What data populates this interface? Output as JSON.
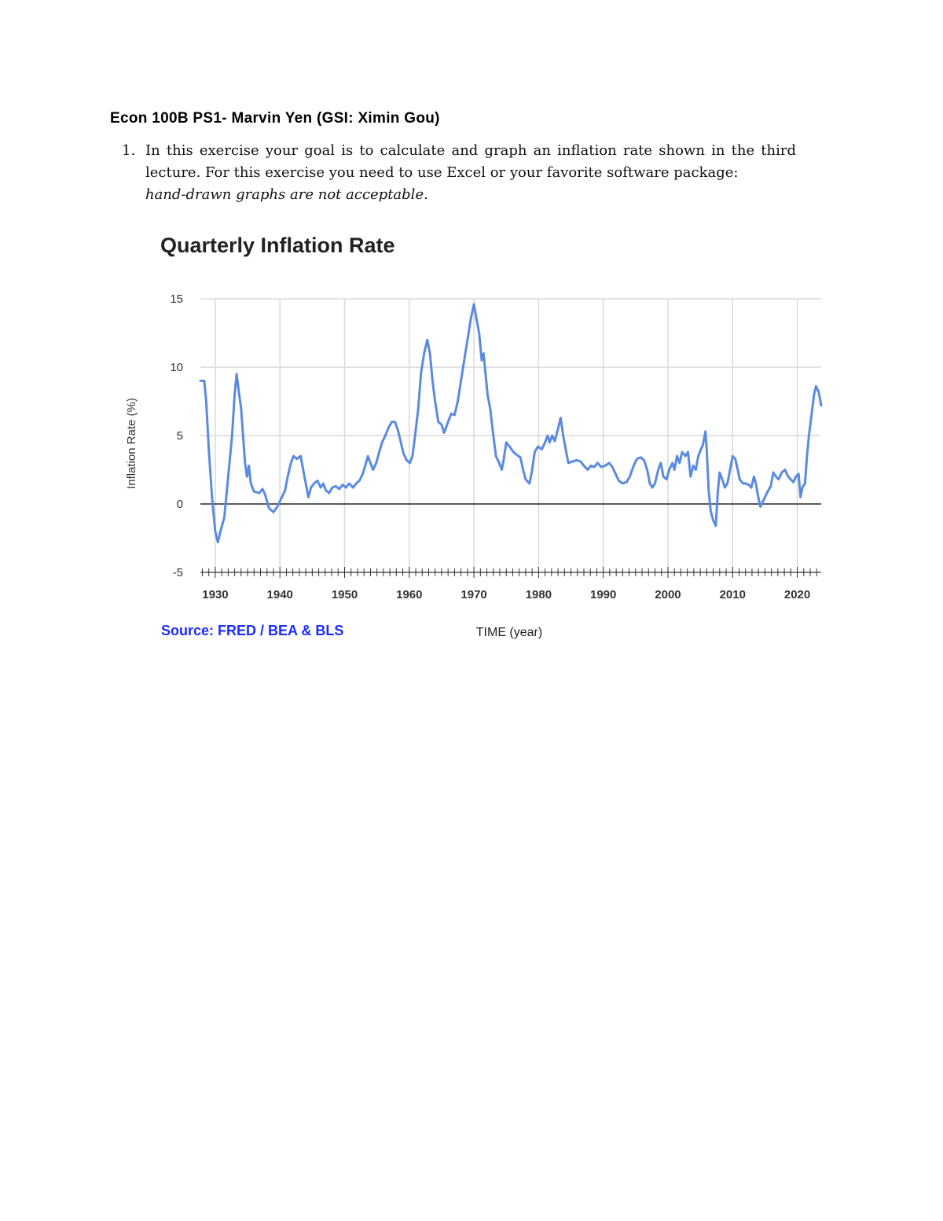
{
  "header": {
    "title": "Econ 100B PS1- Marvin Yen (GSI: Ximin Gou)"
  },
  "question": {
    "number": "1.",
    "text": "In this exercise your goal is to calculate and graph an inflation rate shown in the third lecture. For this exercise you need to use Excel or your favorite software package:",
    "emphasis": "hand-drawn graphs are not acceptable."
  },
  "source_note": "Source: FRED / BEA & BLS",
  "colors": {
    "line": "#5b8be0",
    "source": "#1a2cff",
    "grid": "#d9d9d9",
    "zero_line": "#222222"
  },
  "chart_data": {
    "type": "line",
    "title": "Quarterly Inflation Rate",
    "xlabel": "TIME (year)",
    "ylabel": "Inflation Rate (%)",
    "xlim": [
      1927.7,
      2023.7
    ],
    "ylim": [
      -5,
      15
    ],
    "xticks": [
      1930,
      1940,
      1950,
      1960,
      1970,
      1980,
      1990,
      2000,
      2010,
      2020
    ],
    "yticks": [
      -5,
      0,
      5,
      10,
      15
    ],
    "grid": true,
    "series": [
      {
        "values": [
          [
            1927.7,
            9.0
          ],
          [
            1928.3,
            9.0
          ],
          [
            1928.6,
            7.5
          ],
          [
            1929.0,
            4.0
          ],
          [
            1929.5,
            0.5
          ],
          [
            1930.0,
            -2.0
          ],
          [
            1930.4,
            -2.8
          ],
          [
            1930.8,
            -2.0
          ],
          [
            1931.4,
            -1.0
          ],
          [
            1932.0,
            2.0
          ],
          [
            1932.6,
            5.0
          ],
          [
            1933.0,
            8.0
          ],
          [
            1933.3,
            9.5
          ],
          [
            1933.7,
            8.0
          ],
          [
            1934.0,
            7.0
          ],
          [
            1934.3,
            5.0
          ],
          [
            1934.6,
            3.0
          ],
          [
            1934.9,
            2.0
          ],
          [
            1935.2,
            2.8
          ],
          [
            1935.5,
            1.5
          ],
          [
            1936.0,
            0.9
          ],
          [
            1936.8,
            0.8
          ],
          [
            1937.3,
            1.1
          ],
          [
            1937.7,
            0.7
          ],
          [
            1938.3,
            -0.3
          ],
          [
            1939.0,
            -0.6
          ],
          [
            1939.6,
            -0.2
          ],
          [
            1940.2,
            0.4
          ],
          [
            1940.8,
            1.0
          ],
          [
            1941.2,
            2.0
          ],
          [
            1941.7,
            3.0
          ],
          [
            1942.1,
            3.5
          ],
          [
            1942.6,
            3.3
          ],
          [
            1943.2,
            3.5
          ],
          [
            1943.6,
            2.5
          ],
          [
            1944.0,
            1.5
          ],
          [
            1944.4,
            0.5
          ],
          [
            1944.8,
            1.2
          ],
          [
            1945.3,
            1.5
          ],
          [
            1945.8,
            1.7
          ],
          [
            1946.3,
            1.2
          ],
          [
            1946.7,
            1.5
          ],
          [
            1947.1,
            1.0
          ],
          [
            1947.6,
            0.8
          ],
          [
            1948.1,
            1.2
          ],
          [
            1948.6,
            1.3
          ],
          [
            1949.2,
            1.1
          ],
          [
            1949.7,
            1.4
          ],
          [
            1950.2,
            1.2
          ],
          [
            1950.7,
            1.5
          ],
          [
            1951.3,
            1.2
          ],
          [
            1951.8,
            1.5
          ],
          [
            1952.3,
            1.7
          ],
          [
            1952.8,
            2.2
          ],
          [
            1953.2,
            2.8
          ],
          [
            1953.6,
            3.5
          ],
          [
            1954.0,
            3.0
          ],
          [
            1954.4,
            2.5
          ],
          [
            1954.9,
            3.0
          ],
          [
            1955.3,
            3.7
          ],
          [
            1955.8,
            4.5
          ],
          [
            1956.3,
            5.0
          ],
          [
            1956.8,
            5.6
          ],
          [
            1957.3,
            6.0
          ],
          [
            1957.8,
            6.0
          ],
          [
            1958.3,
            5.3
          ],
          [
            1958.7,
            4.5
          ],
          [
            1959.1,
            3.7
          ],
          [
            1959.6,
            3.2
          ],
          [
            1960.1,
            3.0
          ],
          [
            1960.5,
            3.5
          ],
          [
            1960.9,
            5.0
          ],
          [
            1961.4,
            7.0
          ],
          [
            1961.8,
            9.5
          ],
          [
            1962.3,
            11.0
          ],
          [
            1962.8,
            12.0
          ],
          [
            1963.2,
            11.0
          ],
          [
            1963.6,
            9.0
          ],
          [
            1964.0,
            7.5
          ],
          [
            1964.5,
            6.0
          ],
          [
            1965.0,
            5.8
          ],
          [
            1965.4,
            5.2
          ],
          [
            1966.0,
            6.0
          ],
          [
            1966.5,
            6.6
          ],
          [
            1967.0,
            6.5
          ],
          [
            1967.5,
            7.5
          ],
          [
            1968.0,
            9.0
          ],
          [
            1968.5,
            10.5
          ],
          [
            1969.0,
            12.0
          ],
          [
            1969.5,
            13.5
          ],
          [
            1970.0,
            14.6
          ],
          [
            1970.4,
            13.5
          ],
          [
            1970.8,
            12.5
          ],
          [
            1971.2,
            10.5
          ],
          [
            1971.5,
            11.0
          ],
          [
            1971.8,
            9.5
          ],
          [
            1972.1,
            8.0
          ],
          [
            1972.5,
            7.0
          ],
          [
            1973.0,
            5.0
          ],
          [
            1973.4,
            3.5
          ],
          [
            1973.9,
            3.0
          ],
          [
            1974.3,
            2.5
          ],
          [
            1974.6,
            3.2
          ],
          [
            1975.0,
            4.5
          ],
          [
            1975.5,
            4.2
          ],
          [
            1976.1,
            3.8
          ],
          [
            1976.6,
            3.6
          ],
          [
            1977.2,
            3.4
          ],
          [
            1977.6,
            2.5
          ],
          [
            1978.0,
            1.8
          ],
          [
            1978.6,
            1.5
          ],
          [
            1979.0,
            2.5
          ],
          [
            1979.4,
            3.8
          ],
          [
            1979.9,
            4.2
          ],
          [
            1980.5,
            4.0
          ],
          [
            1981.0,
            4.5
          ],
          [
            1981.4,
            5.0
          ],
          [
            1981.7,
            4.5
          ],
          [
            1982.1,
            5.0
          ],
          [
            1982.5,
            4.6
          ],
          [
            1983.0,
            5.5
          ],
          [
            1983.4,
            6.3
          ],
          [
            1983.8,
            5.0
          ],
          [
            1984.2,
            4.0
          ],
          [
            1984.6,
            3.0
          ],
          [
            1985.2,
            3.1
          ],
          [
            1985.9,
            3.2
          ],
          [
            1986.5,
            3.1
          ],
          [
            1987.0,
            2.8
          ],
          [
            1987.6,
            2.5
          ],
          [
            1988.1,
            2.8
          ],
          [
            1988.6,
            2.7
          ],
          [
            1989.1,
            3.0
          ],
          [
            1989.7,
            2.7
          ],
          [
            1990.3,
            2.8
          ],
          [
            1990.9,
            3.0
          ],
          [
            1991.4,
            2.7
          ],
          [
            1991.9,
            2.2
          ],
          [
            1992.4,
            1.7
          ],
          [
            1993.0,
            1.5
          ],
          [
            1993.6,
            1.6
          ],
          [
            1994.1,
            2.0
          ],
          [
            1994.7,
            2.8
          ],
          [
            1995.2,
            3.3
          ],
          [
            1995.8,
            3.4
          ],
          [
            1996.3,
            3.2
          ],
          [
            1996.8,
            2.5
          ],
          [
            1997.2,
            1.5
          ],
          [
            1997.6,
            1.2
          ],
          [
            1998.0,
            1.5
          ],
          [
            1998.5,
            2.5
          ],
          [
            1998.9,
            3.0
          ],
          [
            1999.3,
            2.0
          ],
          [
            1999.8,
            1.8
          ],
          [
            2000.2,
            2.5
          ],
          [
            2000.7,
            3.0
          ],
          [
            2001.0,
            2.5
          ],
          [
            2001.4,
            3.5
          ],
          [
            2001.8,
            3.0
          ],
          [
            2002.2,
            3.8
          ],
          [
            2002.7,
            3.5
          ],
          [
            2003.1,
            3.8
          ],
          [
            2003.5,
            2.0
          ],
          [
            2003.9,
            2.8
          ],
          [
            2004.3,
            2.5
          ],
          [
            2004.7,
            3.5
          ],
          [
            2005.1,
            4.0
          ],
          [
            2005.4,
            4.3
          ],
          [
            2005.8,
            5.3
          ],
          [
            2006.0,
            4.0
          ],
          [
            2006.3,
            1.0
          ],
          [
            2006.6,
            -0.5
          ],
          [
            2007.0,
            -1.2
          ],
          [
            2007.4,
            -1.6
          ],
          [
            2007.7,
            0.8
          ],
          [
            2008.0,
            2.3
          ],
          [
            2008.4,
            1.8
          ],
          [
            2008.8,
            1.2
          ],
          [
            2009.2,
            1.5
          ],
          [
            2009.6,
            2.5
          ],
          [
            2010.0,
            3.5
          ],
          [
            2010.4,
            3.3
          ],
          [
            2010.8,
            2.5
          ],
          [
            2011.1,
            1.8
          ],
          [
            2011.6,
            1.5
          ],
          [
            2012.0,
            1.5
          ],
          [
            2012.5,
            1.4
          ],
          [
            2012.9,
            1.2
          ],
          [
            2013.3,
            2.0
          ],
          [
            2013.6,
            1.5
          ],
          [
            2014.0,
            0.4
          ],
          [
            2014.3,
            -0.2
          ],
          [
            2014.8,
            0.3
          ],
          [
            2015.3,
            0.8
          ],
          [
            2015.9,
            1.3
          ],
          [
            2016.3,
            2.3
          ],
          [
            2016.7,
            2.0
          ],
          [
            2017.1,
            1.8
          ],
          [
            2017.6,
            2.3
          ],
          [
            2018.1,
            2.5
          ],
          [
            2018.6,
            2.0
          ],
          [
            2019.0,
            1.8
          ],
          [
            2019.4,
            1.6
          ],
          [
            2019.8,
            2.0
          ],
          [
            2020.2,
            2.2
          ],
          [
            2020.5,
            0.5
          ],
          [
            2020.8,
            1.2
          ],
          [
            2021.2,
            1.5
          ],
          [
            2021.5,
            3.5
          ],
          [
            2021.8,
            5.0
          ],
          [
            2022.2,
            6.5
          ],
          [
            2022.6,
            8.0
          ],
          [
            2022.9,
            8.6
          ],
          [
            2023.3,
            8.2
          ],
          [
            2023.7,
            7.2
          ]
        ]
      }
    ]
  }
}
